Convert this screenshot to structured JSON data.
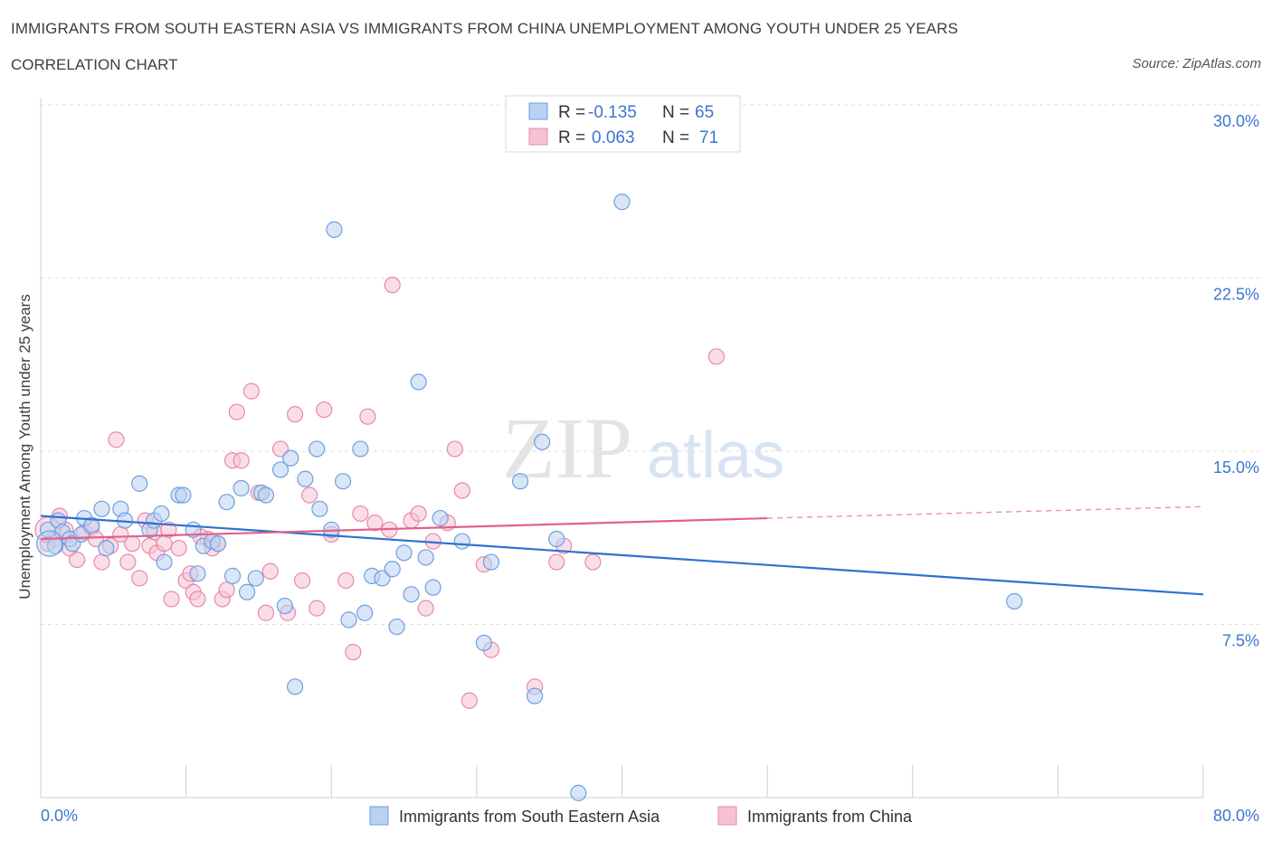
{
  "header": {
    "title": "IMMIGRANTS FROM SOUTH EASTERN ASIA VS IMMIGRANTS FROM CHINA UNEMPLOYMENT AMONG YOUTH UNDER 25 YEARS",
    "subtitle": "CORRELATION CHART",
    "source": "Source: ZipAtlas.com"
  },
  "colors": {
    "blue_fill": "#b9d1f3",
    "blue_stroke": "#6f9fe0",
    "blue_line": "#2f72d0",
    "pink_fill": "#f6c2d3",
    "pink_stroke": "#e889a8",
    "pink_line": "#e0628a",
    "axis_text": "#3b76d0"
  },
  "legend_box": {
    "rows": [
      {
        "r_label": "R =",
        "r_value": "-0.135",
        "n_label": "N =",
        "n_value": "65"
      },
      {
        "r_label": "R =",
        "r_value": "0.063",
        "n_label": "N =",
        "n_value": "71"
      }
    ]
  },
  "chart_data": {
    "type": "scatter",
    "title": "IMMIGRANTS FROM SOUTH EASTERN ASIA VS IMMIGRANTS FROM CHINA UNEMPLOYMENT AMONG YOUTH UNDER 25 YEARS",
    "xlabel": "",
    "ylabel": "Unemployment Among Youth under 25 years",
    "xlim": [
      0,
      80
    ],
    "ylim": [
      0,
      30
    ],
    "x_tick_labels": [
      "0.0%",
      "80.0%"
    ],
    "y_tick_labels": [
      "7.5%",
      "15.0%",
      "22.5%",
      "30.0%"
    ],
    "y_ticks": [
      7.5,
      15,
      22.5,
      30
    ],
    "grid": true,
    "watermark": {
      "zip": "ZIP",
      "atlas": "atlas"
    },
    "series": [
      {
        "name": "Immigrants from South Eastern Asia",
        "r": -0.135,
        "n": 65,
        "trend": {
          "x0": 0,
          "y0": 12.2,
          "x1": 80,
          "y1": 8.8
        },
        "points": [
          [
            0.5,
            11.6
          ],
          [
            1.0,
            10.9
          ],
          [
            1.2,
            12.0
          ],
          [
            1.5,
            11.5
          ],
          [
            2.0,
            11.2
          ],
          [
            2.2,
            11.0
          ],
          [
            2.8,
            11.4
          ],
          [
            3.0,
            12.1
          ],
          [
            3.5,
            11.8
          ],
          [
            4.2,
            12.5
          ],
          [
            4.5,
            10.8
          ],
          [
            5.5,
            12.5
          ],
          [
            5.8,
            12.0
          ],
          [
            6.8,
            13.6
          ],
          [
            7.5,
            11.6
          ],
          [
            7.8,
            12.0
          ],
          [
            8.3,
            12.3
          ],
          [
            8.5,
            10.2
          ],
          [
            9.5,
            13.1
          ],
          [
            9.8,
            13.1
          ],
          [
            10.5,
            11.6
          ],
          [
            10.8,
            9.7
          ],
          [
            11.2,
            10.9
          ],
          [
            11.8,
            11.1
          ],
          [
            12.2,
            11.0
          ],
          [
            12.8,
            12.8
          ],
          [
            13.2,
            9.6
          ],
          [
            13.8,
            13.4
          ],
          [
            14.2,
            8.9
          ],
          [
            14.8,
            9.5
          ],
          [
            15.2,
            13.2
          ],
          [
            15.5,
            13.1
          ],
          [
            16.5,
            14.2
          ],
          [
            16.8,
            8.3
          ],
          [
            17.2,
            14.7
          ],
          [
            17.5,
            4.8
          ],
          [
            18.2,
            13.8
          ],
          [
            19.0,
            15.1
          ],
          [
            19.2,
            12.5
          ],
          [
            20.0,
            11.6
          ],
          [
            20.2,
            24.6
          ],
          [
            20.8,
            13.7
          ],
          [
            21.2,
            7.7
          ],
          [
            22.0,
            15.1
          ],
          [
            22.3,
            8.0
          ],
          [
            22.8,
            9.6
          ],
          [
            23.5,
            9.5
          ],
          [
            24.2,
            9.9
          ],
          [
            24.5,
            7.4
          ],
          [
            25.0,
            10.6
          ],
          [
            25.5,
            8.8
          ],
          [
            26.0,
            18.0
          ],
          [
            26.5,
            10.4
          ],
          [
            27.0,
            9.1
          ],
          [
            27.5,
            12.1
          ],
          [
            29.0,
            11.1
          ],
          [
            30.5,
            6.7
          ],
          [
            31.0,
            10.2
          ],
          [
            33.0,
            13.7
          ],
          [
            34.0,
            4.4
          ],
          [
            34.5,
            15.4
          ],
          [
            35.5,
            11.2
          ],
          [
            37.0,
            0.2
          ],
          [
            40.0,
            25.8
          ],
          [
            67.0,
            8.5
          ]
        ]
      },
      {
        "name": "Immigrants from China",
        "r": 0.063,
        "n": 71,
        "trend": {
          "x0": 0,
          "y0": 11.2,
          "x1": 50,
          "y1": 12.1,
          "dash_x1": 80,
          "dash_y1": 12.6
        },
        "points": [
          [
            0.5,
            11.0
          ],
          [
            1.0,
            11.2
          ],
          [
            1.3,
            12.2
          ],
          [
            1.7,
            11.6
          ],
          [
            2.0,
            10.8
          ],
          [
            2.5,
            10.3
          ],
          [
            3.0,
            11.5
          ],
          [
            3.5,
            11.7
          ],
          [
            3.8,
            11.2
          ],
          [
            4.2,
            10.2
          ],
          [
            4.8,
            10.9
          ],
          [
            5.2,
            15.5
          ],
          [
            5.5,
            11.4
          ],
          [
            6.0,
            10.2
          ],
          [
            6.3,
            11.0
          ],
          [
            6.8,
            9.5
          ],
          [
            7.2,
            12.0
          ],
          [
            7.5,
            10.9
          ],
          [
            7.8,
            11.5
          ],
          [
            8.0,
            10.6
          ],
          [
            8.5,
            11.0
          ],
          [
            8.8,
            11.6
          ],
          [
            9.0,
            8.6
          ],
          [
            9.5,
            10.8
          ],
          [
            10.0,
            9.4
          ],
          [
            10.3,
            9.7
          ],
          [
            10.5,
            8.9
          ],
          [
            10.8,
            8.6
          ],
          [
            11.5,
            11.2
          ],
          [
            11.8,
            10.8
          ],
          [
            12.2,
            11.0
          ],
          [
            12.5,
            8.6
          ],
          [
            12.8,
            9.0
          ],
          [
            13.2,
            14.6
          ],
          [
            13.5,
            16.7
          ],
          [
            13.8,
            14.6
          ],
          [
            14.5,
            17.6
          ],
          [
            15.0,
            13.2
          ],
          [
            15.5,
            8.0
          ],
          [
            15.8,
            9.8
          ],
          [
            16.5,
            15.1
          ],
          [
            17.0,
            8.0
          ],
          [
            17.5,
            16.6
          ],
          [
            18.0,
            9.4
          ],
          [
            18.5,
            13.1
          ],
          [
            19.0,
            8.2
          ],
          [
            19.5,
            16.8
          ],
          [
            20.0,
            11.4
          ],
          [
            21.0,
            9.4
          ],
          [
            21.5,
            6.3
          ],
          [
            22.0,
            12.3
          ],
          [
            22.5,
            16.5
          ],
          [
            23.0,
            11.9
          ],
          [
            24.0,
            11.6
          ],
          [
            25.5,
            12.0
          ],
          [
            26.0,
            12.3
          ],
          [
            26.5,
            8.2
          ],
          [
            27.0,
            11.1
          ],
          [
            28.0,
            11.9
          ],
          [
            28.5,
            15.1
          ],
          [
            29.0,
            13.3
          ],
          [
            29.5,
            4.2
          ],
          [
            30.5,
            10.1
          ],
          [
            31.0,
            6.4
          ],
          [
            34.0,
            4.8
          ],
          [
            35.5,
            10.2
          ],
          [
            36.0,
            10.9
          ],
          [
            38.0,
            10.2
          ],
          [
            24.2,
            22.2
          ],
          [
            46.5,
            19.1
          ],
          [
            11.0,
            11.3
          ]
        ]
      }
    ]
  }
}
